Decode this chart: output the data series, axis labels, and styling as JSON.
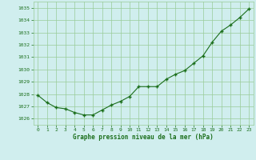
{
  "x": [
    0,
    1,
    2,
    3,
    4,
    5,
    6,
    7,
    8,
    9,
    10,
    11,
    12,
    13,
    14,
    15,
    16,
    17,
    18,
    19,
    20,
    21,
    22,
    23
  ],
  "y": [
    1027.9,
    1027.3,
    1026.9,
    1026.8,
    1026.5,
    1026.3,
    1026.3,
    1026.7,
    1027.1,
    1027.4,
    1027.8,
    1028.6,
    1028.6,
    1028.6,
    1029.2,
    1029.6,
    1029.9,
    1030.5,
    1031.1,
    1032.2,
    1033.1,
    1033.6,
    1034.2,
    1034.9
  ],
  "line_color": "#1a6e1a",
  "marker_color": "#1a6e1a",
  "bg_color": "#d0eeee",
  "grid_color": "#99cc99",
  "xlabel": "Graphe pression niveau de la mer (hPa)",
  "xlabel_color": "#1a6e1a",
  "tick_color": "#1a6e1a",
  "ylim": [
    1025.5,
    1035.5
  ],
  "xlim": [
    -0.5,
    23.5
  ],
  "yticks": [
    1026,
    1027,
    1028,
    1029,
    1030,
    1031,
    1032,
    1033,
    1034,
    1035
  ],
  "xticks": [
    0,
    1,
    2,
    3,
    4,
    5,
    6,
    7,
    8,
    9,
    10,
    11,
    12,
    13,
    14,
    15,
    16,
    17,
    18,
    19,
    20,
    21,
    22,
    23
  ]
}
